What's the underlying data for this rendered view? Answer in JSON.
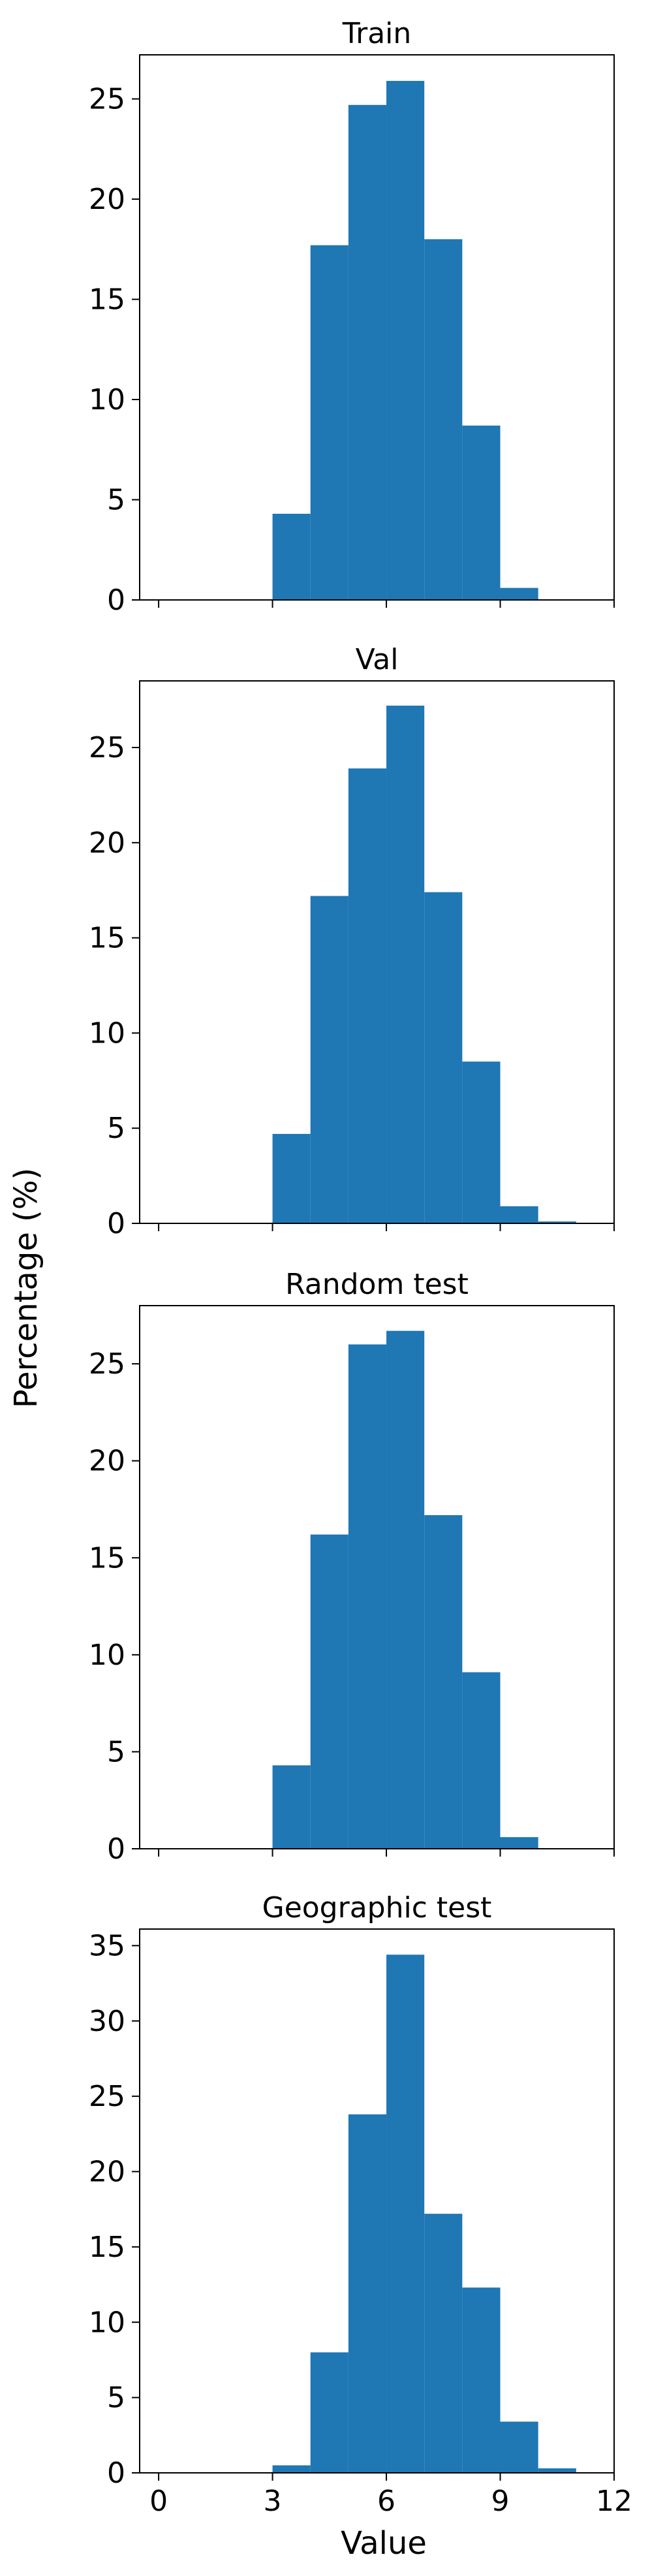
{
  "chart_data": {
    "type": "bar",
    "layout": "4 stacked histogram panels sharing x-axis",
    "xlabel": "Value",
    "ylabel": "Percentage (%)",
    "xlim": [
      -0.5,
      12
    ],
    "xticks": [
      0,
      3,
      6,
      9,
      12
    ],
    "bin_edges": [
      3,
      4,
      5,
      6,
      7,
      8,
      9,
      10,
      11
    ],
    "grid": false,
    "bar_color": "#1f77b4",
    "panels": [
      {
        "title": "Train",
        "values": [
          4.3,
          17.7,
          24.7,
          25.9,
          18.0,
          8.7,
          0.6,
          0.0
        ],
        "ylim": [
          0,
          27.2
        ],
        "yticks": [
          0,
          5,
          10,
          15,
          20,
          25
        ]
      },
      {
        "title": "Val",
        "values": [
          4.7,
          17.2,
          23.9,
          27.2,
          17.4,
          8.5,
          0.9,
          0.1
        ],
        "ylim": [
          0,
          28.5
        ],
        "yticks": [
          0,
          5,
          10,
          15,
          20,
          25
        ]
      },
      {
        "title": "Random test",
        "values": [
          4.3,
          16.2,
          26.0,
          26.7,
          17.2,
          9.1,
          0.6,
          0.0
        ],
        "ylim": [
          0,
          28.0
        ],
        "yticks": [
          0,
          5,
          10,
          15,
          20,
          25
        ]
      },
      {
        "title": "Geographic test",
        "values": [
          0.5,
          8.0,
          23.8,
          34.4,
          17.2,
          12.3,
          3.4,
          0.3
        ],
        "ylim": [
          0,
          36.1
        ],
        "yticks": [
          0,
          5,
          10,
          15,
          20,
          25,
          30,
          35
        ]
      }
    ]
  }
}
